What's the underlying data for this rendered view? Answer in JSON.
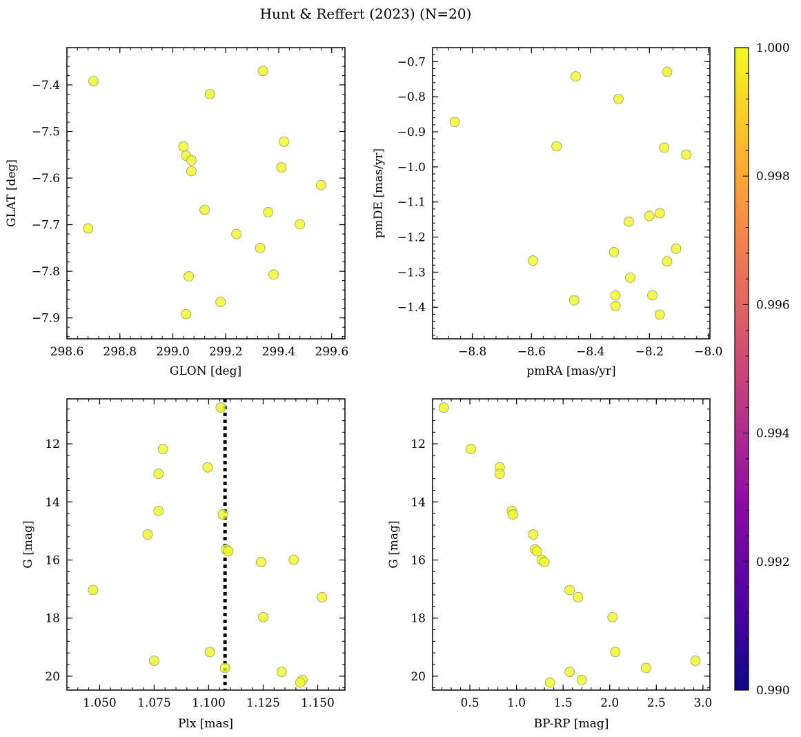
{
  "figure": {
    "title": "Hunt & Reffert (2023) (N=20)"
  },
  "colorbar": {
    "min": 0.99,
    "max": 1.0,
    "ticks": [
      "0.990",
      "0.992",
      "0.994",
      "0.996",
      "0.998",
      "1.000"
    ],
    "colormap": "plasma",
    "stops": [
      "#0d0887",
      "#5302a3",
      "#8b0aa5",
      "#b83289",
      "#db5c68",
      "#f48849",
      "#febd2a",
      "#f0f921"
    ]
  },
  "marker": {
    "fill": "#f0f921",
    "edge": "#9a9a6a",
    "alpha": 0.8
  },
  "chart_data": [
    {
      "type": "scatter",
      "id": "glon-glat",
      "xlabel": "GLON [deg]",
      "ylabel": "GLAT [deg]",
      "xlim": [
        298.6,
        299.65
      ],
      "ylim": [
        -7.945,
        -7.32
      ],
      "xticks": [
        298.6,
        298.8,
        299.0,
        299.2,
        299.4,
        299.6
      ],
      "xtick_labels": [
        "298.6",
        "298.8",
        "299.0",
        "299.2",
        "299.4",
        "299.6"
      ],
      "yticks": [
        -7.9,
        -7.8,
        -7.7,
        -7.6,
        -7.5,
        -7.4
      ],
      "ytick_labels": [
        "−7.9",
        "−7.8",
        "−7.7",
        "−7.6",
        "−7.5",
        "−7.4"
      ],
      "x": [
        298.7,
        298.68,
        299.14,
        299.34,
        299.04,
        299.05,
        299.07,
        299.07,
        299.42,
        299.41,
        299.56,
        299.12,
        299.36,
        299.48,
        299.24,
        299.33,
        299.06,
        299.38,
        299.18,
        299.05
      ],
      "y": [
        -7.392,
        -7.708,
        -7.42,
        -7.37,
        -7.532,
        -7.552,
        -7.562,
        -7.585,
        -7.522,
        -7.577,
        -7.615,
        -7.668,
        -7.673,
        -7.699,
        -7.72,
        -7.75,
        -7.811,
        -7.807,
        -7.866,
        -7.892
      ]
    },
    {
      "type": "scatter",
      "id": "pmra-pmde",
      "xlabel": "pmRA [mas/yr]",
      "ylabel": "pmDE [mas/yr]",
      "xlim": [
        -8.935,
        -7.995
      ],
      "ylim": [
        -1.49,
        -0.66
      ],
      "xticks": [
        -8.8,
        -8.6,
        -8.4,
        -8.2,
        -8.0
      ],
      "xtick_labels": [
        "−8.8",
        "−8.6",
        "−8.4",
        "−8.2",
        "−8.0"
      ],
      "yticks": [
        -1.4,
        -1.3,
        -1.2,
        -1.1,
        -1.0,
        -0.9,
        -0.8,
        -0.7
      ],
      "ytick_labels": [
        "−1.4",
        "−1.3",
        "−1.2",
        "−1.1",
        "−1.0",
        "−0.9",
        "−0.8",
        "−0.7"
      ],
      "x": [
        -8.45,
        -8.14,
        -8.305,
        -8.86,
        -8.515,
        -8.15,
        -8.075,
        -8.2,
        -8.165,
        -8.27,
        -8.11,
        -8.32,
        -8.595,
        -8.14,
        -8.265,
        -8.315,
        -8.455,
        -8.315,
        -8.19,
        -8.165
      ],
      "y": [
        -0.742,
        -0.729,
        -0.806,
        -0.872,
        -0.941,
        -0.945,
        -0.965,
        -1.14,
        -1.132,
        -1.156,
        -1.233,
        -1.243,
        -1.267,
        -1.269,
        -1.316,
        -1.366,
        -1.38,
        -1.396,
        -1.366,
        -1.421
      ]
    },
    {
      "type": "scatter",
      "id": "plx-g",
      "xlabel": "Plx [mas]",
      "ylabel": "G [mag]",
      "xlim": [
        1.035,
        1.1625
      ],
      "ylim": [
        20.48,
        10.45
      ],
      "xticks": [
        1.05,
        1.075,
        1.1,
        1.125,
        1.15
      ],
      "xtick_labels": [
        "1.050",
        "1.075",
        "1.100",
        "1.125",
        "1.150"
      ],
      "yticks": [
        12,
        14,
        16,
        18,
        20
      ],
      "ytick_labels": [
        "12",
        "14",
        "16",
        "18",
        "20"
      ],
      "vline": 1.1075,
      "x": [
        1.1055,
        1.079,
        1.077,
        1.0995,
        1.077,
        1.1065,
        1.072,
        1.108,
        1.109,
        1.124,
        1.139,
        1.047,
        1.152,
        1.125,
        1.1005,
        1.075,
        1.1075,
        1.1335,
        1.143,
        1.142
      ],
      "y": [
        10.75,
        12.18,
        13.03,
        12.81,
        14.31,
        14.43,
        15.12,
        15.63,
        15.7,
        16.07,
        15.99,
        17.03,
        17.28,
        17.97,
        19.17,
        19.47,
        19.72,
        19.85,
        20.13,
        20.22
      ]
    },
    {
      "type": "scatter",
      "id": "bprp-g",
      "xlabel": "BP-RP [mag]",
      "ylabel": "G [mag]",
      "xlim": [
        0.1,
        3.075
      ],
      "ylim": [
        20.48,
        10.45
      ],
      "xticks": [
        0.5,
        1.0,
        1.5,
        2.0,
        2.5,
        3.0
      ],
      "xtick_labels": [
        "0.5",
        "1.0",
        "1.5",
        "2.0",
        "2.5",
        "3.0"
      ],
      "yticks": [
        12,
        14,
        16,
        18,
        20
      ],
      "ytick_labels": [
        "12",
        "14",
        "16",
        "18",
        "20"
      ],
      "x": [
        0.22,
        0.51,
        0.82,
        0.82,
        0.95,
        0.96,
        1.18,
        1.2,
        1.22,
        1.27,
        1.3,
        1.57,
        1.66,
        2.03,
        2.06,
        2.92,
        2.39,
        1.57,
        1.7,
        1.36
      ],
      "y": [
        10.75,
        12.18,
        12.81,
        13.03,
        14.31,
        14.43,
        15.12,
        15.63,
        15.7,
        15.99,
        16.07,
        17.03,
        17.28,
        17.97,
        19.17,
        19.47,
        19.72,
        19.85,
        20.13,
        20.22
      ]
    }
  ]
}
